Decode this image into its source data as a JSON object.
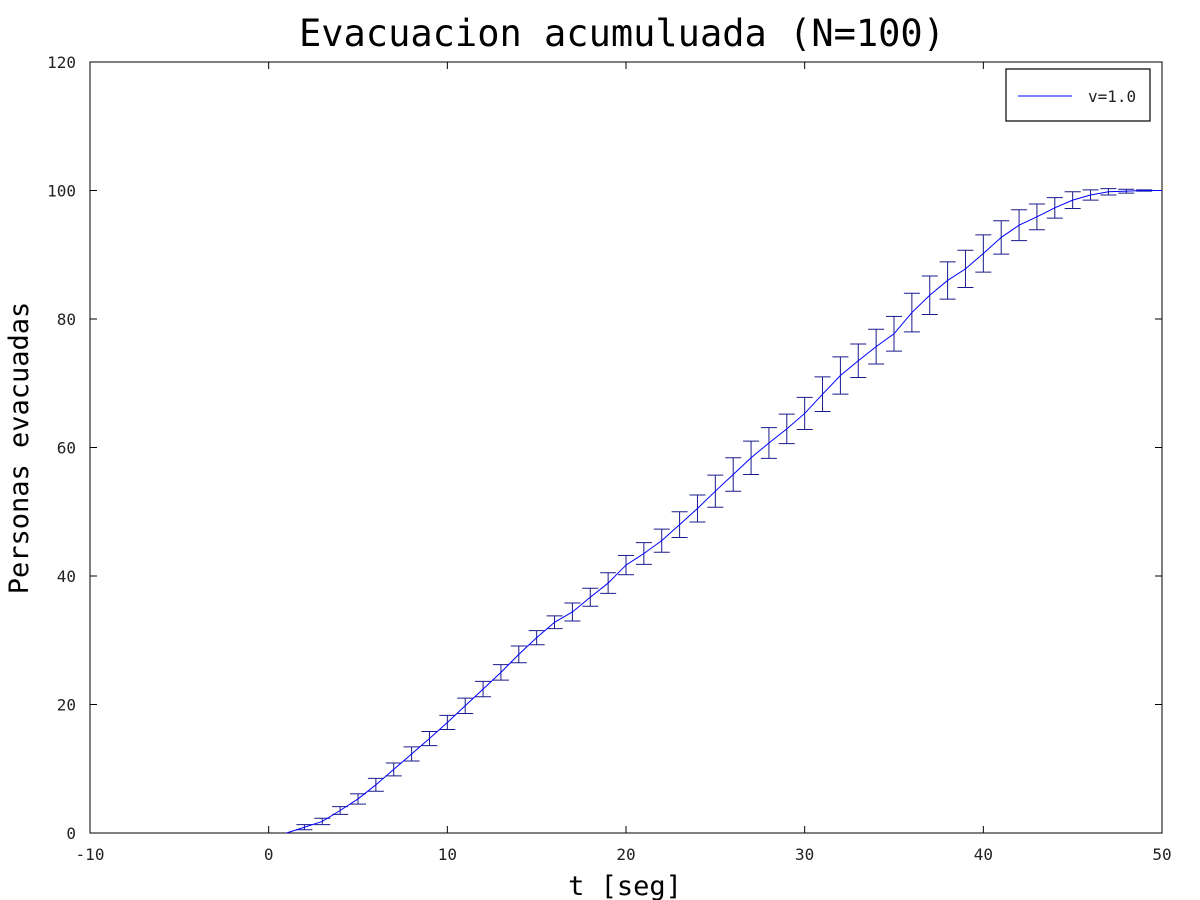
{
  "chart_data": {
    "type": "line",
    "title": "Evacuacion acumuluada (N=100)",
    "xlabel": "t [seg]",
    "ylabel": "Personas evacuadas",
    "xlim": [
      -10,
      50
    ],
    "ylim": [
      0,
      120
    ],
    "xticks": [
      -10,
      0,
      10,
      20,
      30,
      40,
      50
    ],
    "yticks": [
      0,
      20,
      40,
      60,
      80,
      100,
      120
    ],
    "grid": false,
    "legend_position": "top-right",
    "series": [
      {
        "name": "v=1.0",
        "color": "#0000ff",
        "error_color": "#1a1a8c",
        "x": [
          1,
          2,
          3,
          4,
          5,
          6,
          7,
          8,
          9,
          10,
          11,
          12,
          13,
          14,
          15,
          16,
          17,
          18,
          19,
          20,
          21,
          22,
          23,
          24,
          25,
          26,
          27,
          28,
          29,
          30,
          31,
          32,
          33,
          34,
          35,
          36,
          37,
          38,
          39,
          40,
          41,
          42,
          43,
          44,
          45,
          46,
          47,
          48,
          49,
          50
        ],
        "y": [
          0,
          0.9,
          1.8,
          3.5,
          5.3,
          7.5,
          9.9,
          12.3,
          14.7,
          17.2,
          19.8,
          22.4,
          25.0,
          27.8,
          30.4,
          32.8,
          34.4,
          36.7,
          38.9,
          41.7,
          43.5,
          45.5,
          48.0,
          50.5,
          53.2,
          55.8,
          58.4,
          60.7,
          62.9,
          65.3,
          68.3,
          71.2,
          73.5,
          75.7,
          77.7,
          81.0,
          83.7,
          86.0,
          87.8,
          90.2,
          92.7,
          94.6,
          95.9,
          97.3,
          98.5,
          99.3,
          99.8,
          99.9,
          100.0,
          100.0
        ],
        "error": [
          0,
          0.4,
          0.5,
          0.6,
          0.8,
          1.0,
          1.0,
          1.1,
          1.1,
          1.1,
          1.2,
          1.2,
          1.2,
          1.3,
          1.1,
          1.0,
          1.4,
          1.4,
          1.6,
          1.5,
          1.7,
          1.8,
          2.0,
          2.1,
          2.5,
          2.6,
          2.6,
          2.4,
          2.3,
          2.5,
          2.7,
          2.9,
          2.6,
          2.7,
          2.7,
          3.0,
          3.0,
          2.9,
          2.9,
          2.9,
          2.6,
          2.4,
          2.0,
          1.6,
          1.3,
          0.8,
          0.5,
          0.3,
          0.1,
          0
        ]
      }
    ]
  }
}
